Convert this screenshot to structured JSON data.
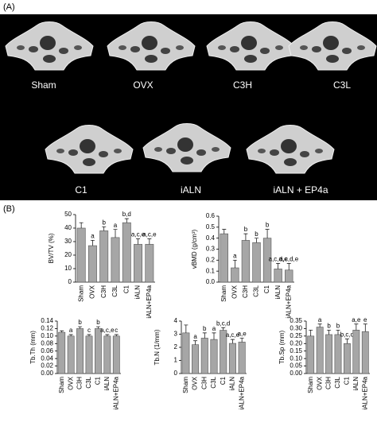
{
  "panel_a": {
    "label": "(A)",
    "samples": [
      "Sham",
      "OVX",
      "C3H",
      "C3L",
      "C1",
      "iALN",
      "iALN + EP4a"
    ]
  },
  "panel_b_label": "(B)",
  "chart_data": [
    {
      "type": "bar",
      "ylabel": "BV/TV (%)",
      "color": "#a6a6a6",
      "categories": [
        "Sham",
        "OVX",
        "C3H",
        "C3L",
        "C1",
        "iALN",
        "iALN+EP4a"
      ],
      "values": [
        40,
        27,
        38,
        33,
        44,
        28,
        28
      ],
      "errors": [
        4,
        4,
        3,
        6,
        3,
        4,
        4
      ],
      "annotations": [
        null,
        "a",
        "b",
        "a",
        "b,d",
        "a,c,e",
        "a,c,e"
      ],
      "ylim": [
        0,
        50
      ],
      "yticks": [
        0,
        10,
        20,
        30,
        40,
        50
      ]
    },
    {
      "type": "bar",
      "ylabel": "vBMD (g/cm³)",
      "color": "#a6a6a6",
      "categories": [
        "Sham",
        "OVX",
        "C3H",
        "C3L",
        "C1",
        "iALN",
        "iALN+EP4a"
      ],
      "values": [
        0.44,
        0.13,
        0.38,
        0.36,
        0.4,
        0.12,
        0.11
      ],
      "errors": [
        0.04,
        0.07,
        0.06,
        0.04,
        0.08,
        0.05,
        0.06
      ],
      "annotations": [
        null,
        "a",
        "b",
        "b",
        "b",
        "a,c,d,e",
        "a,c,d,e"
      ],
      "ylim": [
        0,
        0.6
      ],
      "yticks": [
        {
          "value": 0,
          "label": "0.0"
        },
        0.1,
        0.2,
        0.3,
        0.4,
        0.5,
        0.6
      ]
    },
    {
      "type": "bar",
      "ylabel": "Tb.Th (mm)",
      "color": "#a6a6a6",
      "categories": [
        "Sham",
        "OVX",
        "C3H",
        "C3L",
        "C1",
        "iALN",
        "iALN+EP4a"
      ],
      "values": [
        0.11,
        0.1,
        0.12,
        0.1,
        0.12,
        0.1,
        0.1
      ],
      "errors": [
        0.004,
        0.004,
        0.005,
        0.004,
        0.005,
        0.004,
        0.004
      ],
      "annotations": [
        null,
        "a",
        "b",
        "c",
        "b",
        "a,c,e",
        "c"
      ],
      "ylim": [
        0,
        0.14
      ],
      "yticks": [
        {
          "value": 0,
          "label": "0.00"
        },
        {
          "value": 0.02,
          "label": "0.02"
        },
        {
          "value": 0.04,
          "label": "0.04"
        },
        {
          "value": 0.06,
          "label": "0.06"
        },
        {
          "value": 0.08,
          "label": "0.08"
        },
        {
          "value": 0.1,
          "label": "0.10"
        },
        {
          "value": 0.12,
          "label": "0.12"
        },
        {
          "value": 0.14,
          "label": "0.14"
        }
      ]
    },
    {
      "type": "bar",
      "ylabel": "Tb.N (1/mm)",
      "color": "#a6a6a6",
      "categories": [
        "Sham",
        "OVX",
        "C3H",
        "C3L",
        "C1",
        "iALN",
        "iALN+EP4a"
      ],
      "values": [
        3.1,
        2.2,
        2.7,
        2.6,
        3.3,
        2.3,
        2.4
      ],
      "errors": [
        0.6,
        0.3,
        0.4,
        0.5,
        0.2,
        0.3,
        0.3
      ],
      "annotations": [
        null,
        "a",
        "b",
        "a",
        "b,c,d",
        "a,c,e",
        "a,e"
      ],
      "ylim": [
        0,
        4
      ],
      "yticks": [
        0,
        1,
        2,
        3,
        4
      ]
    },
    {
      "type": "bar",
      "ylabel": "Tb.Sp (mm)",
      "color": "#a6a6a6",
      "categories": [
        "Sham",
        "OVX",
        "C3H",
        "C3L",
        "C1",
        "iALN",
        "iALN+EP4a"
      ],
      "values": [
        0.25,
        0.31,
        0.26,
        0.26,
        0.2,
        0.29,
        0.28
      ],
      "errors": [
        0.04,
        0.02,
        0.03,
        0.03,
        0.03,
        0.04,
        0.05
      ],
      "annotations": [
        null,
        "a",
        "b",
        "b",
        "b,c,d",
        "a,e",
        "e"
      ],
      "ylim": [
        0,
        0.35
      ],
      "yticks": [
        {
          "value": 0,
          "label": "0.00"
        },
        {
          "value": 0.05,
          "label": "0.05"
        },
        {
          "value": 0.1,
          "label": "0.10"
        },
        {
          "value": 0.15,
          "label": "0.15"
        },
        {
          "value": 0.2,
          "label": "0.20"
        },
        {
          "value": 0.25,
          "label": "0.25"
        },
        {
          "value": 0.3,
          "label": "0.30"
        },
        {
          "value": 0.35,
          "label": "0.35"
        }
      ]
    }
  ]
}
